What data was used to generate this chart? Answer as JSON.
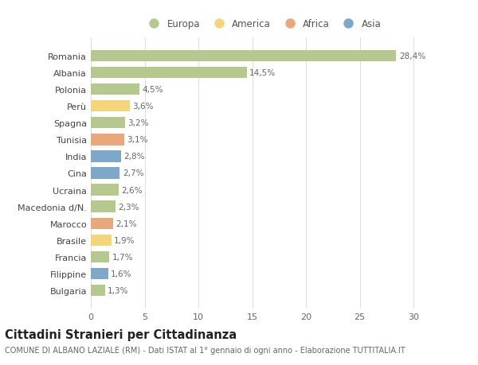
{
  "categories": [
    "Romania",
    "Albania",
    "Polonia",
    "Perù",
    "Spagna",
    "Tunisia",
    "India",
    "Cina",
    "Ucraina",
    "Macedonia d/N.",
    "Marocco",
    "Brasile",
    "Francia",
    "Filippine",
    "Bulgaria"
  ],
  "values": [
    28.4,
    14.5,
    4.5,
    3.6,
    3.2,
    3.1,
    2.8,
    2.7,
    2.6,
    2.3,
    2.1,
    1.9,
    1.7,
    1.6,
    1.3
  ],
  "labels": [
    "28,4%",
    "14,5%",
    "4,5%",
    "3,6%",
    "3,2%",
    "3,1%",
    "2,8%",
    "2,7%",
    "2,6%",
    "2,3%",
    "2,1%",
    "1,9%",
    "1,7%",
    "1,6%",
    "1,3%"
  ],
  "continents": [
    "Europa",
    "Europa",
    "Europa",
    "America",
    "Europa",
    "Africa",
    "Asia",
    "Asia",
    "Europa",
    "Europa",
    "Africa",
    "America",
    "Europa",
    "Asia",
    "Europa"
  ],
  "continent_colors": {
    "Europa": "#b5c98e",
    "America": "#f5d57a",
    "Africa": "#e8a87c",
    "Asia": "#7da8c9"
  },
  "legend_order": [
    "Europa",
    "America",
    "Africa",
    "Asia"
  ],
  "title": "Cittadini Stranieri per Cittadinanza",
  "subtitle": "COMUNE DI ALBANO LAZIALE (RM) - Dati ISTAT al 1° gennaio di ogni anno - Elaborazione TUTTITALIA.IT",
  "xlim": [
    0,
    32
  ],
  "xticks": [
    0,
    5,
    10,
    15,
    20,
    25,
    30
  ],
  "background_color": "#ffffff",
  "grid_color": "#dddddd",
  "bar_height": 0.68,
  "label_fontsize": 7.5,
  "tick_fontsize": 8,
  "title_fontsize": 10.5,
  "subtitle_fontsize": 7
}
